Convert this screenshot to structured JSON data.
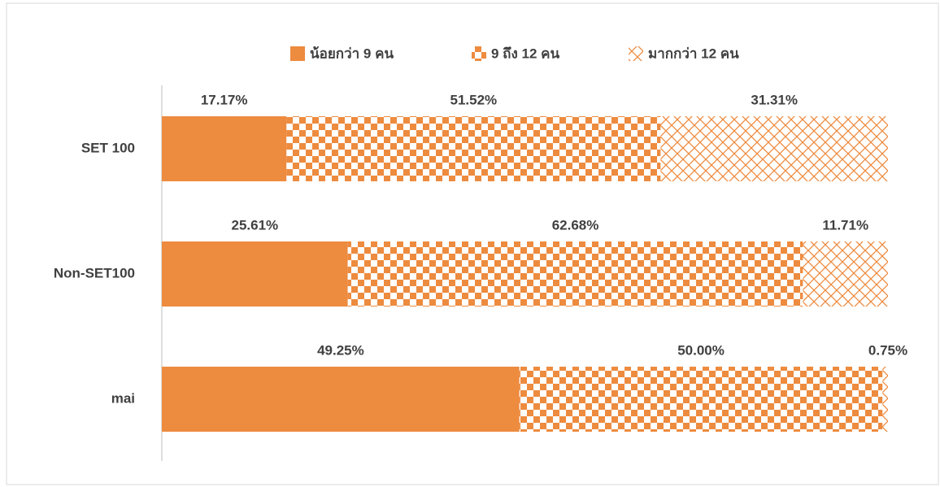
{
  "chart_data": {
    "type": "stacked-bar-horizontal",
    "categories": [
      "SET 100",
      "Non-SET100",
      "mai"
    ],
    "series": [
      {
        "name": "น้อยกว่า 9 คน",
        "color": "#ED8B3F",
        "pattern": "solid",
        "values": [
          17.17,
          25.61,
          49.25
        ],
        "value_labels": [
          "17.17%",
          "25.61%",
          "49.25%"
        ]
      },
      {
        "name": "9 ถึง 12 คน",
        "color": "#ED8B3F",
        "pattern": "checker",
        "values": [
          51.52,
          62.68,
          50.0
        ],
        "value_labels": [
          "51.52%",
          "62.68%",
          "50.00%"
        ]
      },
      {
        "name": "มากกว่า 12 คน",
        "color": "#ED8B3F",
        "pattern": "crosshatch",
        "values": [
          31.31,
          11.71,
          0.75
        ],
        "value_labels": [
          "31.31%",
          "11.71%",
          "0.75%"
        ]
      }
    ],
    "xlim": [
      0,
      100
    ],
    "legend": "top"
  }
}
